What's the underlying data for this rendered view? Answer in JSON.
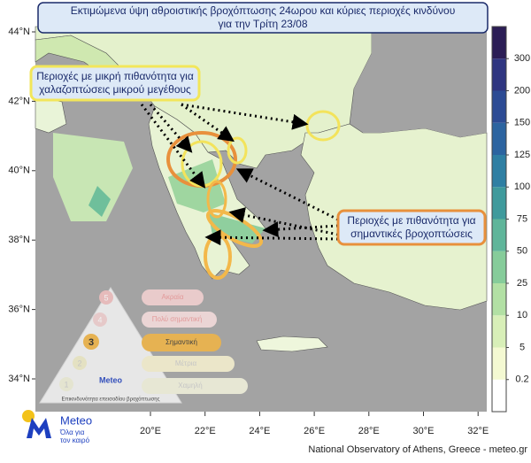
{
  "title_lines": [
    "Εκτιμώμενα ύψη αθροιστικής βροχόπτωσης 24ωρου και κύριες περιοχές κινδύνου",
    "για την Τρίτη 23/08"
  ],
  "annotations": [
    {
      "lines": [
        "Περιοχές με μικρή πιθανότητα για",
        "χαλαζοπτώσεις μικρού μεγέθους"
      ]
    },
    {
      "lines": [
        "Περιοχές με πιθανότητα για",
        "σημαντικές βροχοπτώσεις"
      ]
    }
  ],
  "map": {
    "lat_labels": [
      "44°N",
      "42°N",
      "40°N",
      "38°N",
      "36°N",
      "34°N"
    ],
    "lon_labels": [
      "20°E",
      "22°E",
      "24°E",
      "26°E",
      "28°E",
      "30°E",
      "32°E"
    ]
  },
  "colorbar": {
    "ticks": [
      0.2,
      5,
      10,
      25,
      50,
      75,
      100,
      125,
      150,
      200,
      300
    ],
    "colors": [
      "#ffffff",
      "#f4f9d2",
      "#d8efb8",
      "#b2e0a4",
      "#86cc9a",
      "#5fb59a",
      "#3f9a9c",
      "#2f7fa3",
      "#2c64a0",
      "#2c4b94",
      "#2f3580",
      "#2b1d55"
    ]
  },
  "risk_scale": {
    "levels": [
      {
        "number": 5,
        "label": "Ακραία"
      },
      {
        "number": 4,
        "label": "Πολύ σημαντική"
      },
      {
        "number": 3,
        "label": "Σημαντική"
      },
      {
        "number": 2,
        "label": "Μέτρια"
      },
      {
        "number": 1,
        "label": "Χαμηλή"
      }
    ],
    "caption": "Επικινδυνότητα επεισοδίου βροχόπτωσης",
    "logo": "Meteo"
  },
  "logo": {
    "name": "Meteo",
    "tagline": [
      "Όλα για",
      "τον καιρό"
    ]
  },
  "footer": "National Observatory of Athens, Greece - meteo.gr"
}
